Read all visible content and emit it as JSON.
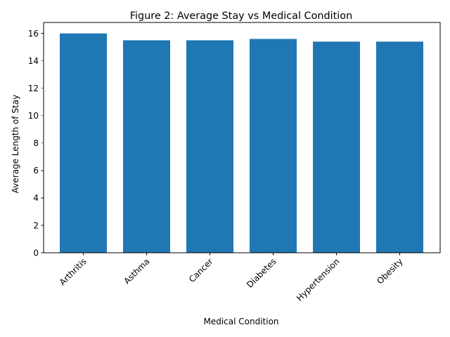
{
  "chart_data": {
    "type": "bar",
    "title": "Figure 2: Average Stay vs Medical Condition",
    "xlabel": "Medical Condition",
    "ylabel": "Average Length of Stay",
    "categories": [
      "Arthritis",
      "Asthma",
      "Cancer",
      "Diabetes",
      "Hypertension",
      "Obesity"
    ],
    "values": [
      16.0,
      15.5,
      15.5,
      15.6,
      15.4,
      15.4
    ],
    "ylim": [
      0,
      16.8
    ],
    "yticks": [
      0,
      2,
      4,
      6,
      8,
      10,
      12,
      14,
      16
    ],
    "grid": false,
    "bar_color": "#1f77b4"
  }
}
